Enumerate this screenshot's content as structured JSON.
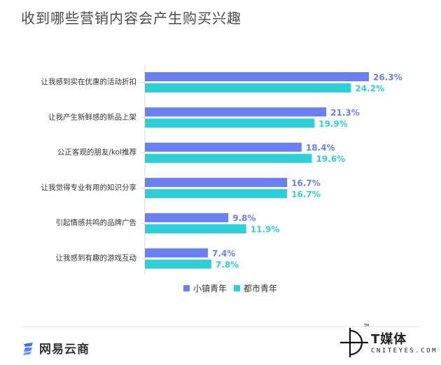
{
  "title": "收到哪些营销内容会产生购买兴趣",
  "chart_data": {
    "type": "bar",
    "orientation": "horizontal",
    "categories": [
      "让我感到实在优惠的活动折扣",
      "让我产生新鲜感的新品上架",
      "公正客观的朋友/kol推荐",
      "让我觉得专业有用的知识分享",
      "引起情感共鸣的品牌广告",
      "让我感到有趣的游戏互动"
    ],
    "series": [
      {
        "name": "小镇青年",
        "color": "#6a7ff0",
        "values": [
          26.3,
          21.3,
          18.4,
          16.7,
          9.8,
          7.4
        ],
        "labels": [
          "26.3%",
          "21.3%",
          "18.4%",
          "16.7%",
          "9.8%",
          "7.4%"
        ]
      },
      {
        "name": "都市青年",
        "color": "#2ecfd8",
        "values": [
          24.2,
          19.9,
          19.6,
          16.7,
          11.9,
          7.8
        ],
        "labels": [
          "24.2%",
          "19.9%",
          "19.6%",
          "16.7%",
          "11.9%",
          "7.8%"
        ]
      }
    ],
    "xlim": [
      0,
      30
    ],
    "legend_position": "bottom-center",
    "grid": false
  },
  "footer": {
    "left_logo": "网易云商",
    "right_logo_brand": "T媒体",
    "right_logo_sub": "CNITEYES.COM",
    "right_logo_tm": "TM"
  }
}
